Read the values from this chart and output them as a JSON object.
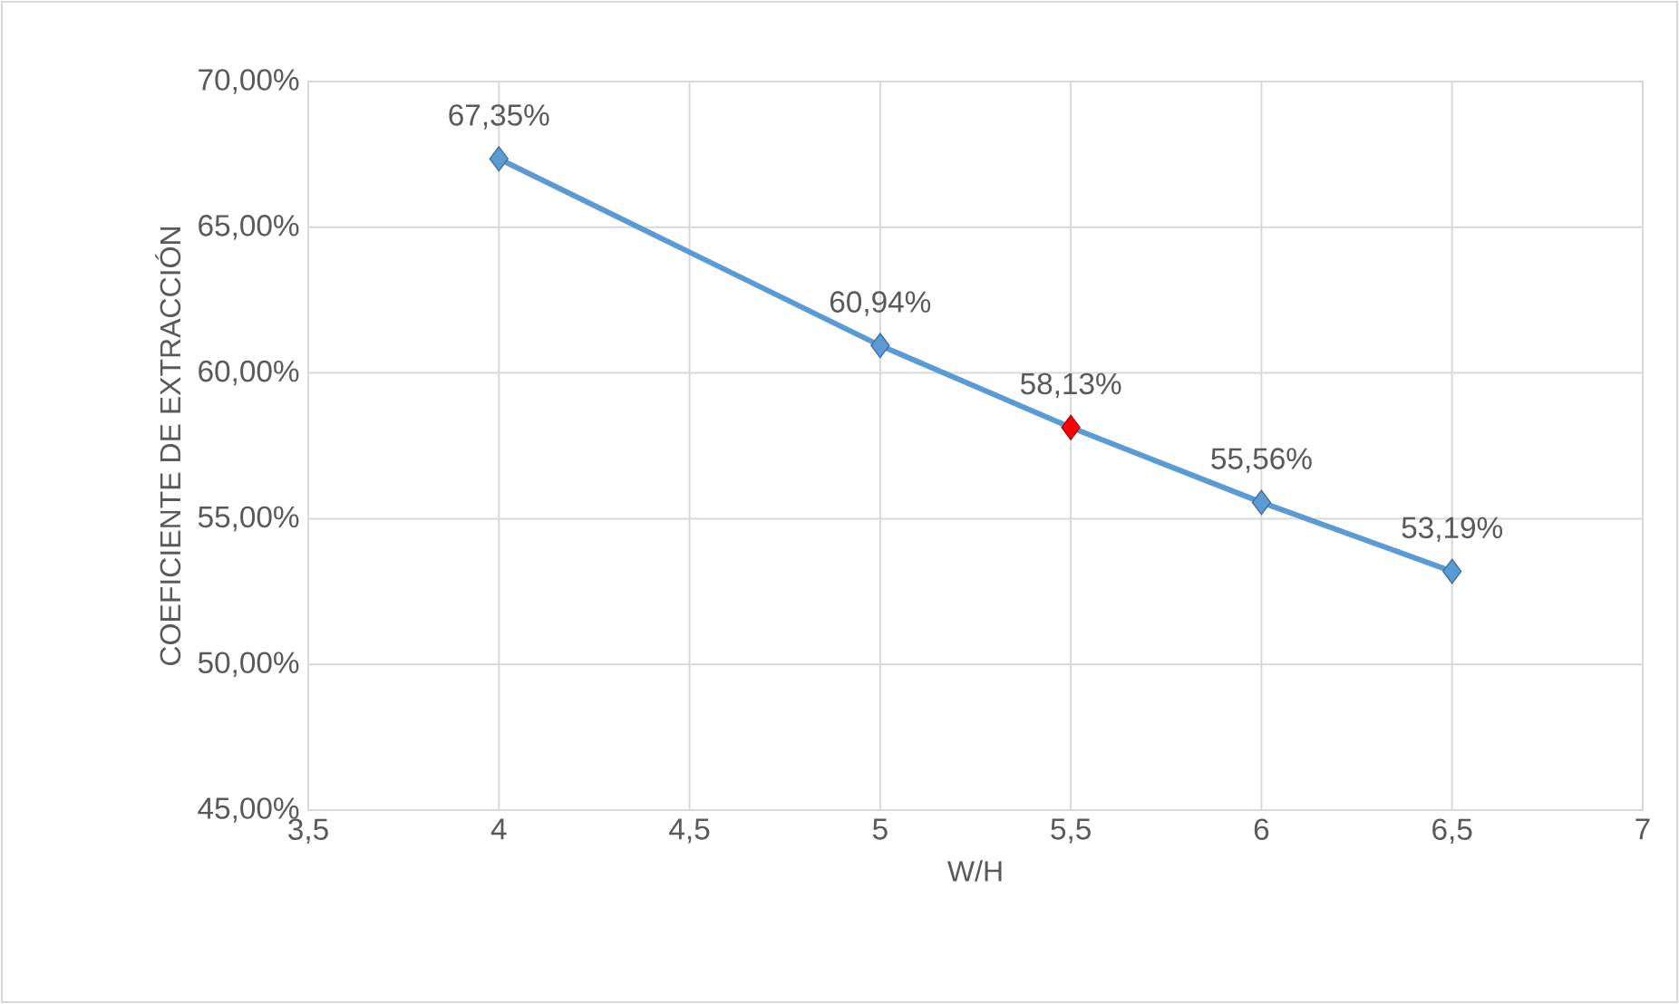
{
  "chart_data": {
    "type": "line",
    "xlabel": "W/H",
    "ylabel": "COEFICIENTE DE EXTRACCIÓN",
    "x": [
      4,
      5,
      5.5,
      6,
      6.5
    ],
    "series": [
      {
        "color": "#5b9bd5",
        "values": [
          67.35,
          60.94,
          58.13,
          55.56,
          53.19
        ],
        "colors": [
          "#5b9bd5",
          "#5b9bd5",
          "#ff0000",
          "#5b9bd5",
          "#5b9bd5"
        ],
        "value_labels": [
          "67,35%",
          "60,94%",
          "58,13%",
          "55,56%",
          "53,19%"
        ]
      }
    ],
    "xlim": [
      3.5,
      7
    ],
    "xticks": [
      {
        "value": 3.5,
        "label": "3,5"
      },
      4,
      {
        "value": 4.5,
        "label": "4,5"
      },
      5,
      {
        "value": 5.5,
        "label": "5,5"
      },
      6,
      {
        "value": 6.5,
        "label": "6,5"
      },
      7
    ],
    "ylim": [
      45,
      70
    ],
    "yticks": [
      {
        "value": 45,
        "label": "45,00%"
      },
      {
        "value": 50,
        "label": "50,00%"
      },
      {
        "value": 55,
        "label": "55,00%"
      },
      {
        "value": 60,
        "label": "60,00%"
      },
      {
        "value": 65,
        "label": "65,00%"
      },
      {
        "value": 70,
        "label": "70,00%"
      }
    ],
    "grid": true,
    "marker": "diamond",
    "line_style": "solid"
  }
}
